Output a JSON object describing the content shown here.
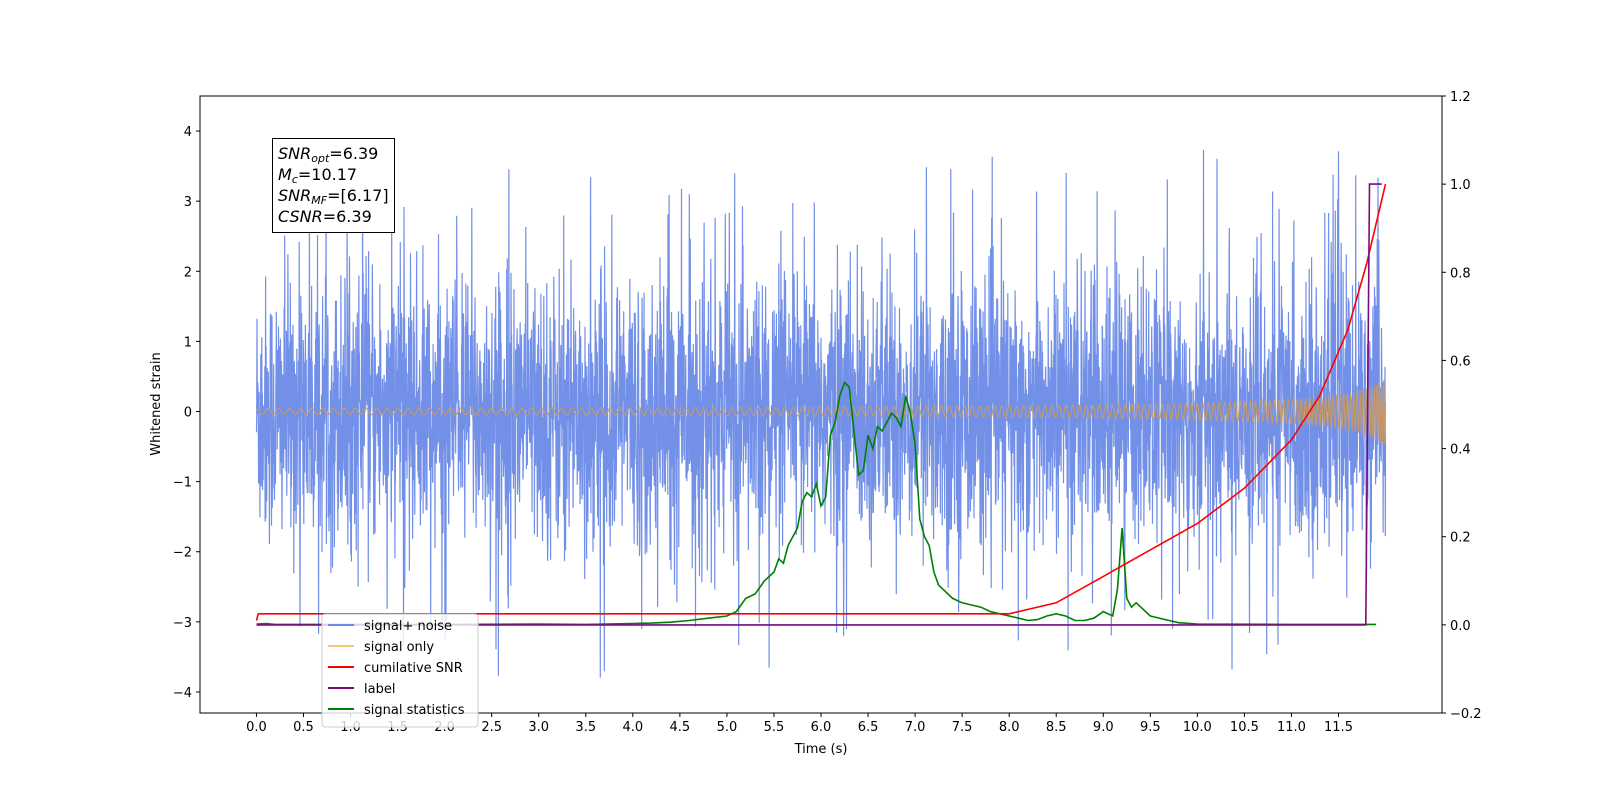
{
  "chart_data": {
    "type": "line",
    "xlabel": "Time (s)",
    "ylabel": "Whitened strain",
    "xlim": [
      -0.6,
      12.6
    ],
    "ylim": [
      -4.3,
      4.5
    ],
    "y2lim": [
      -0.2,
      1.2
    ],
    "x_ticks": [
      "0.0",
      "0.5",
      "1.0",
      "1.5",
      "2.0",
      "2.5",
      "3.0",
      "3.5",
      "4.0",
      "4.5",
      "5.0",
      "5.5",
      "6.0",
      "6.5",
      "7.0",
      "7.5",
      "8.0",
      "8.5",
      "9.0",
      "9.5",
      "10.0",
      "10.5",
      "11.0",
      "11.5"
    ],
    "y_ticks": [
      "4",
      "3",
      "2",
      "1",
      "0",
      "−1",
      "−2",
      "−3",
      "−4"
    ],
    "y2_ticks": [
      "1.2",
      "1.0",
      "0.8",
      "0.6",
      "0.4",
      "0.2",
      "0.0",
      "−0.2"
    ],
    "legend_position": "lower-left",
    "annotation": {
      "snr_opt": "6.39",
      "mc": "10.17",
      "snr_mf": "[6.17]",
      "csnr": "6.39"
    },
    "series": [
      {
        "name": "signal+ noise",
        "color": "#6a8ae6",
        "axis": "left",
        "description_values": {
          "x_range": [
            0.0,
            12.0
          ],
          "noise_std": 0.95,
          "peak_max": 4.1,
          "peak_min": -3.9
        }
      },
      {
        "name": "signal only",
        "color": "#f5c77a",
        "axis": "left",
        "description_values": {
          "x_range": [
            0.0,
            12.0
          ],
          "envelope_end": 0.45
        }
      },
      {
        "name": "cumilative SNR",
        "color": "#ff0000",
        "axis": "right",
        "x": [
          0.0,
          0.02,
          8.0,
          8.5,
          9.0,
          9.5,
          10.0,
          10.5,
          11.0,
          11.3,
          11.6,
          11.8,
          12.0
        ],
        "y": [
          0.01,
          0.025,
          0.025,
          0.05,
          0.11,
          0.17,
          0.23,
          0.31,
          0.42,
          0.52,
          0.67,
          0.82,
          1.0
        ]
      },
      {
        "name": "label",
        "color": "#7b0a7b",
        "axis": "right",
        "x": [
          0.0,
          11.78,
          11.79,
          11.83,
          11.84,
          11.96
        ],
        "y": [
          0.0,
          0.0,
          0.0,
          1.0,
          1.0,
          1.0
        ]
      },
      {
        "name": "signal statistics",
        "color": "#008000",
        "axis": "right",
        "x": [
          0.0,
          0.1,
          0.2,
          0.5,
          1.0,
          2.0,
          3.0,
          3.5,
          4.0,
          4.2,
          4.4,
          4.6,
          4.8,
          5.0,
          5.1,
          5.2,
          5.3,
          5.4,
          5.5,
          5.55,
          5.6,
          5.65,
          5.7,
          5.75,
          5.8,
          5.85,
          5.9,
          5.95,
          6.0,
          6.05,
          6.1,
          6.15,
          6.2,
          6.25,
          6.3,
          6.35,
          6.4,
          6.45,
          6.5,
          6.55,
          6.6,
          6.65,
          6.7,
          6.75,
          6.8,
          6.85,
          6.9,
          6.95,
          7.0,
          7.05,
          7.1,
          7.15,
          7.2,
          7.25,
          7.3,
          7.35,
          7.4,
          7.5,
          7.6,
          7.7,
          7.8,
          7.9,
          8.0,
          8.1,
          8.2,
          8.3,
          8.4,
          8.5,
          8.6,
          8.7,
          8.8,
          8.9,
          9.0,
          9.1,
          9.15,
          9.2,
          9.25,
          9.3,
          9.35,
          9.4,
          9.5,
          9.7,
          9.8,
          10.0,
          11.0,
          11.9
        ],
        "y": [
          0.002,
          0.003,
          0.001,
          0.001,
          0.001,
          0.001,
          0.002,
          0.001,
          0.003,
          0.004,
          0.006,
          0.01,
          0.015,
          0.02,
          0.03,
          0.06,
          0.07,
          0.1,
          0.12,
          0.15,
          0.14,
          0.18,
          0.2,
          0.22,
          0.28,
          0.3,
          0.29,
          0.32,
          0.27,
          0.29,
          0.43,
          0.46,
          0.52,
          0.55,
          0.54,
          0.44,
          0.34,
          0.35,
          0.43,
          0.4,
          0.45,
          0.44,
          0.46,
          0.48,
          0.47,
          0.45,
          0.52,
          0.48,
          0.41,
          0.24,
          0.2,
          0.18,
          0.12,
          0.09,
          0.08,
          0.07,
          0.06,
          0.05,
          0.045,
          0.04,
          0.03,
          0.025,
          0.02,
          0.015,
          0.01,
          0.012,
          0.02,
          0.025,
          0.02,
          0.01,
          0.01,
          0.015,
          0.03,
          0.02,
          0.08,
          0.22,
          0.06,
          0.04,
          0.05,
          0.04,
          0.02,
          0.01,
          0.005,
          0.002,
          0.001,
          0.001
        ]
      }
    ]
  }
}
